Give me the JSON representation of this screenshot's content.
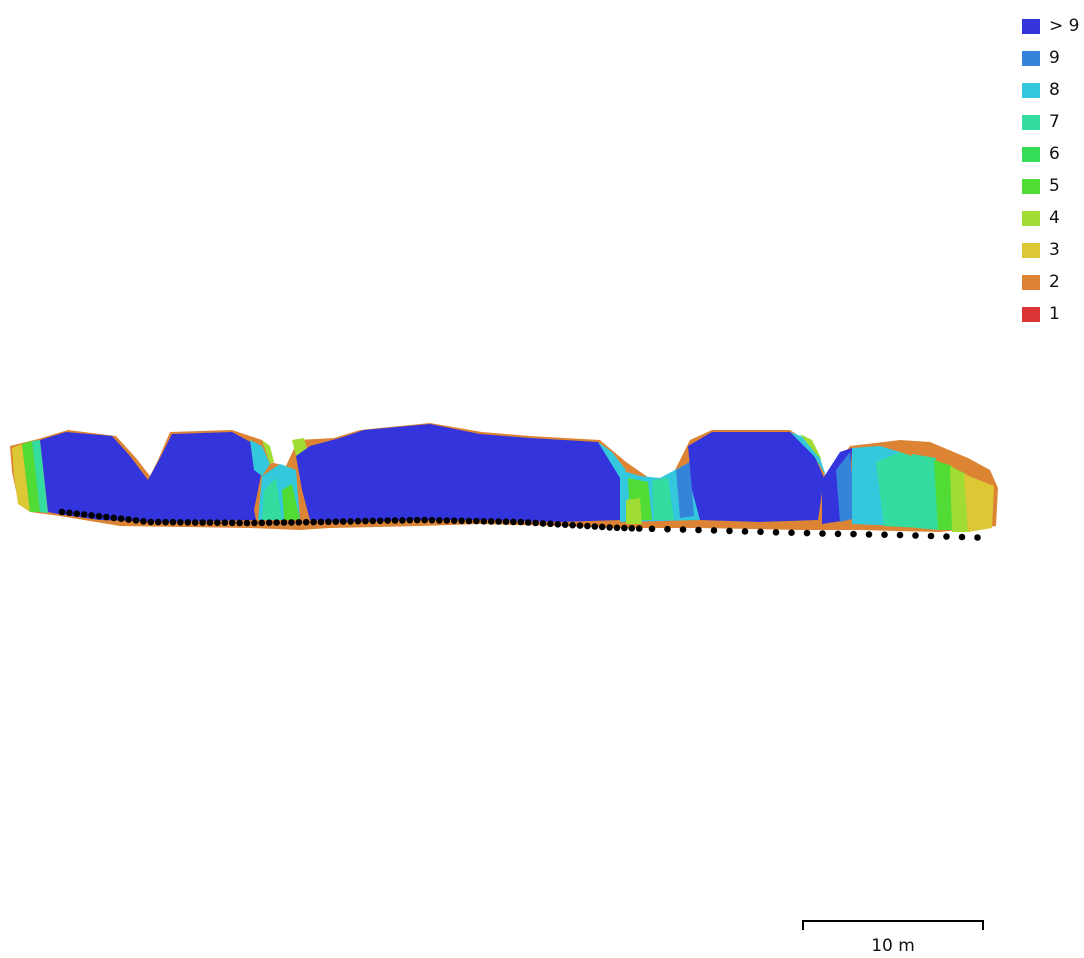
{
  "legend": {
    "items": [
      {
        "label": "> 9",
        "color": "#3434dc"
      },
      {
        "label": "9",
        "color": "#3484dc"
      },
      {
        "label": "8",
        "color": "#34c8dc"
      },
      {
        "label": "7",
        "color": "#34dca0"
      },
      {
        "label": "6",
        "color": "#34dc58"
      },
      {
        "label": "5",
        "color": "#50dc34"
      },
      {
        "label": "4",
        "color": "#a0dc34"
      },
      {
        "label": "3",
        "color": "#dcc834"
      },
      {
        "label": "2",
        "color": "#dc8434"
      },
      {
        "label": "1",
        "color": "#dc3434"
      }
    ]
  },
  "scale_bar": {
    "label": "10 m"
  },
  "point_marker_color": "#000000"
}
